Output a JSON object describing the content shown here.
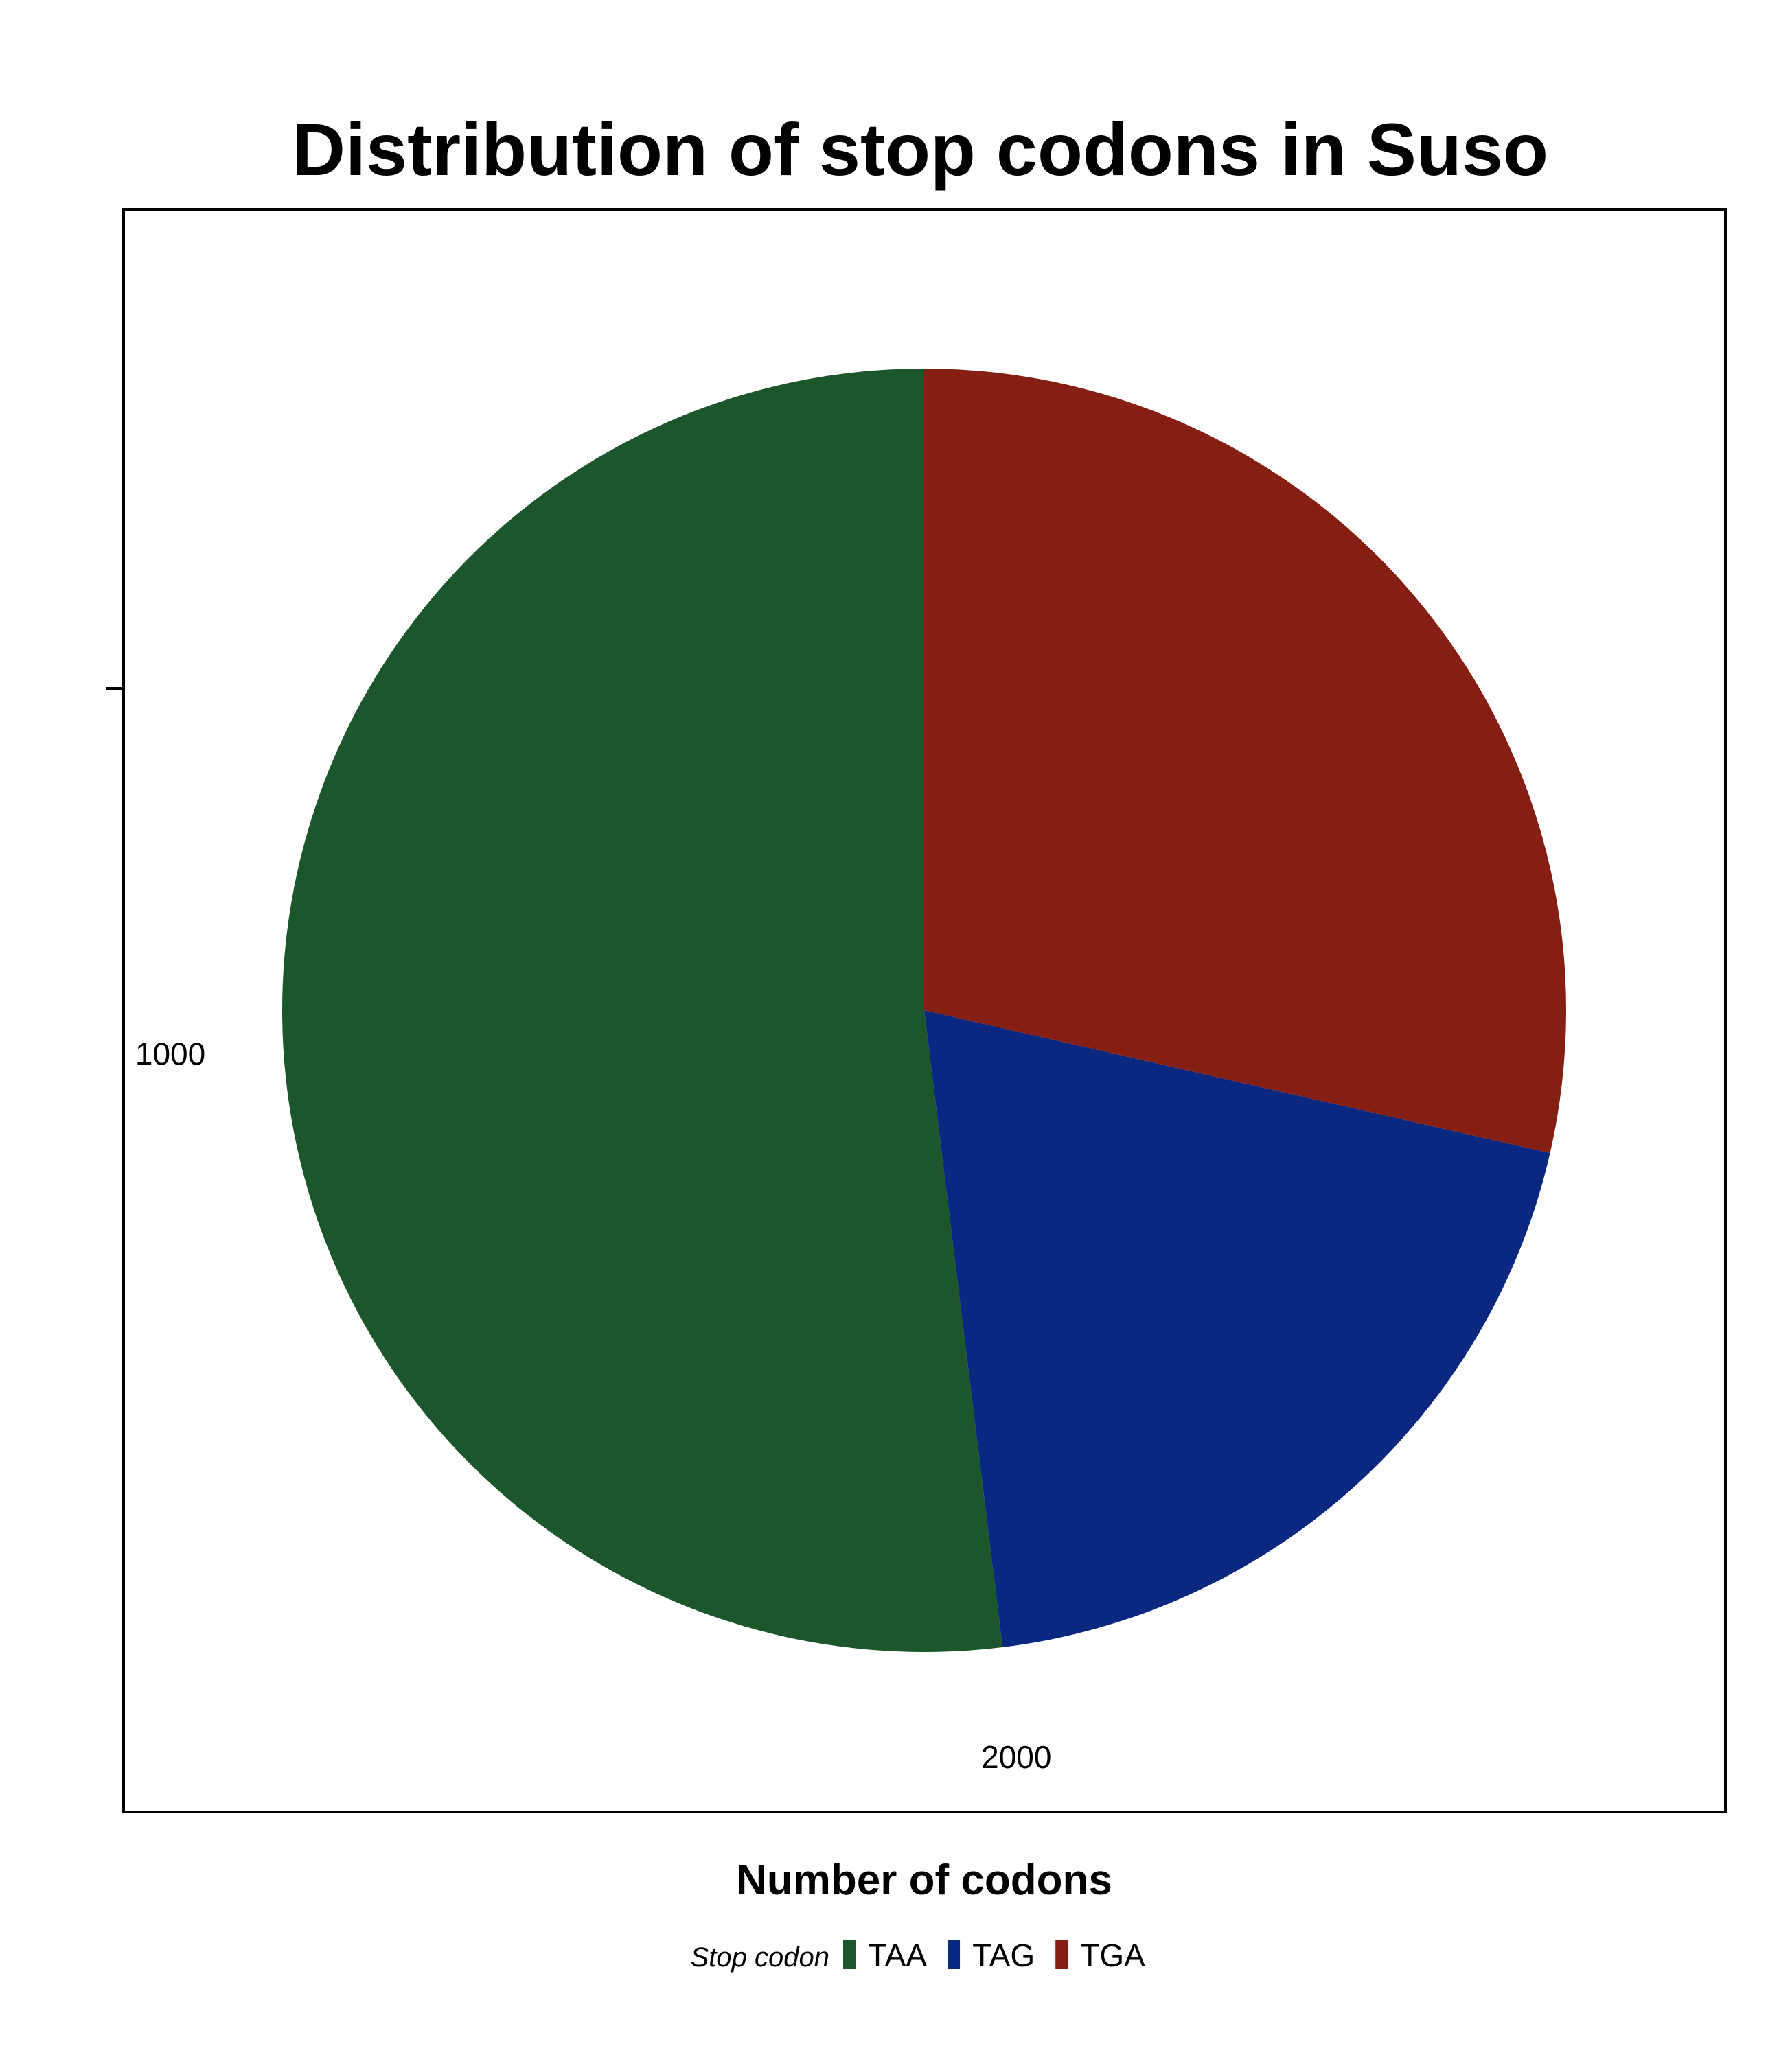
{
  "chart_data": {
    "type": "pie",
    "title": "Distribution of stop codons in Suso",
    "xlabel": "Number of codons",
    "ylabel": "",
    "categories": [
      "TAA",
      "TAG",
      "TGA"
    ],
    "values": [
      2000,
      750,
      1100
    ],
    "colors": [
      "#1B572B",
      "#0A2880",
      "#861F13"
    ],
    "circular_axis": {
      "min": 0,
      "max": 3850,
      "ticks": [
        1000,
        2000
      ],
      "tick_labels": [
        "1000",
        "2000"
      ],
      "direction": "counter-clockwise",
      "start": "top"
    },
    "grid": false,
    "legend": {
      "title": "Stop codon",
      "placement": "bottom",
      "items": [
        "TAA",
        "TAG",
        "TGA"
      ]
    }
  }
}
